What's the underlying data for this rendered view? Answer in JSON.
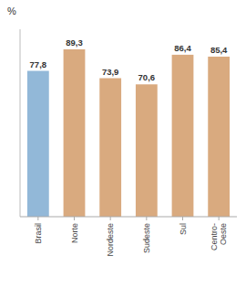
{
  "chart_data": {
    "type": "bar",
    "y_label": "%",
    "categories": [
      "Brasil",
      "Norte",
      "Nordeste",
      "Sudeste",
      "Sul",
      "Centro-\nOeste"
    ],
    "values": [
      77.8,
      89.3,
      73.9,
      70.6,
      86.4,
      85.4
    ],
    "value_labels": [
      "77,8",
      "89,3",
      "73,9",
      "70,6",
      "86,4",
      "85,4"
    ],
    "colors": [
      "#92b8d8",
      "#d9aa7f",
      "#d9aa7f",
      "#d9aa7f",
      "#d9aa7f",
      "#d9aa7f"
    ],
    "ylim": [
      0,
      100
    ],
    "grid": false,
    "data_labels": true,
    "tick_labels": "x"
  }
}
